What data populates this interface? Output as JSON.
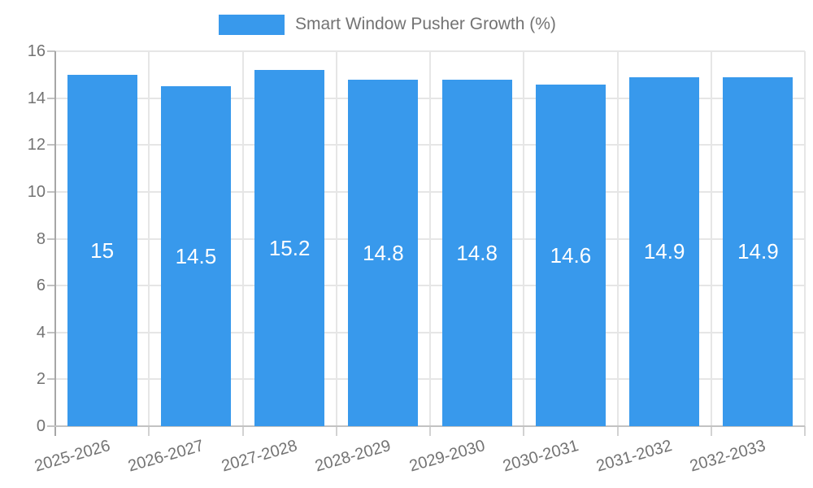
{
  "legend": {
    "label": "Smart Window Pusher Growth (%)",
    "position": "top"
  },
  "chart_data": {
    "type": "bar",
    "title": "Smart Window Pusher Growth (%)",
    "categories": [
      "2025-2026",
      "2026-2027",
      "2027-2028",
      "2028-2029",
      "2029-2030",
      "2030-2031",
      "2031-2032",
      "2032-2033"
    ],
    "values": [
      15,
      14.5,
      15.2,
      14.8,
      14.8,
      14.6,
      14.9,
      14.9
    ],
    "value_labels": [
      "15",
      "14.5",
      "15.2",
      "14.8",
      "14.8",
      "14.6",
      "14.9",
      "14.9"
    ],
    "xlabel": "",
    "ylabel": "",
    "ylim": [
      0,
      16
    ],
    "yticks": [
      0,
      2,
      4,
      6,
      8,
      10,
      12,
      14,
      16
    ],
    "grid": true,
    "legend_position": "top",
    "bar_color": "#3899ec",
    "value_label_color": "#ffffff",
    "axis_text_color": "#737373",
    "gridline_color": "#e6e6e6"
  }
}
